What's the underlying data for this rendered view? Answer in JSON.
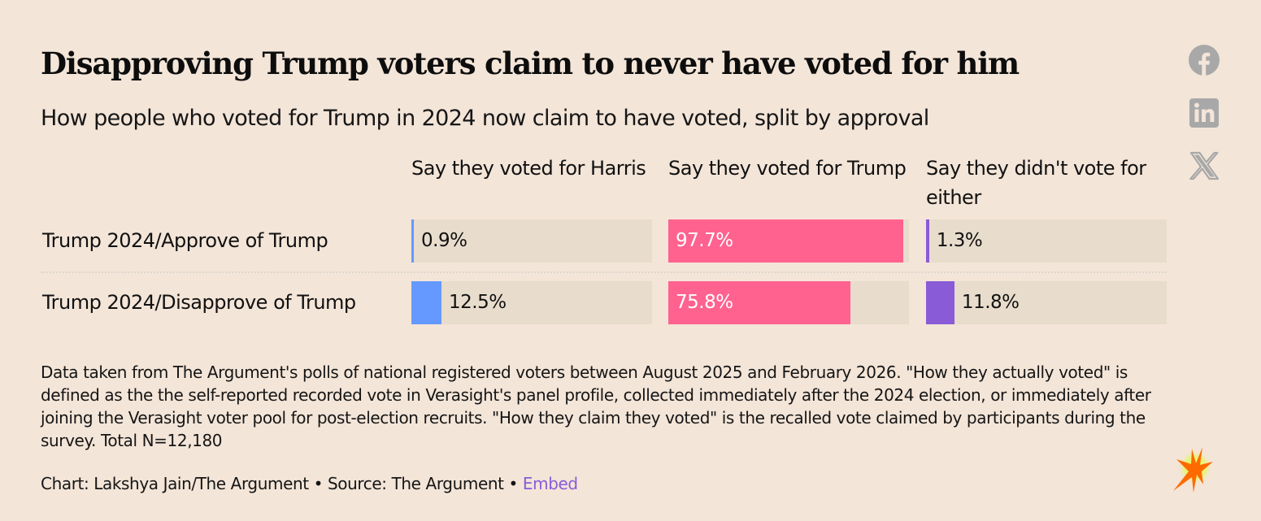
{
  "header": {
    "title": "Disapproving Trump voters claim to never have voted for him",
    "subtitle": "How people who voted for Trump in 2024 now claim to have voted, split by approval"
  },
  "share": [
    {
      "name": "facebook-icon",
      "label": "Share on Facebook"
    },
    {
      "name": "linkedin-icon",
      "label": "Share on LinkedIn"
    },
    {
      "name": "x-icon",
      "label": "Share on X"
    }
  ],
  "colors": {
    "background": "#f3e5d8",
    "track": "#e8dccc",
    "harris": "#6699ff",
    "trump": "#ff628f",
    "either": "#8a5bd6",
    "icon": "#a8a8a8",
    "link": "#8a5cd8"
  },
  "chart_data": {
    "type": "bar",
    "subtype": "small-multiple horizontal bars (table)",
    "title": "Disapproving Trump voters claim to never have voted for him",
    "subtitle": "How people who voted for Trump in 2024 now claim to have voted, split by approval",
    "columns": [
      {
        "key": "harris",
        "label": "Say they voted for Harris",
        "color": "#6699ff"
      },
      {
        "key": "trump",
        "label": "Say they voted for Trump",
        "color": "#ff628f"
      },
      {
        "key": "either",
        "label": "Say they didn't vote for either",
        "color": "#8a5bd6"
      }
    ],
    "categories": [
      "Trump 2024/Approve of Trump",
      "Trump 2024/Disapprove of Trump"
    ],
    "series": [
      {
        "name": "Say they voted for Harris",
        "values": [
          0.9,
          12.5
        ],
        "labels": [
          "0.9%",
          "12.5%"
        ]
      },
      {
        "name": "Say they voted for Trump",
        "values": [
          97.7,
          75.8
        ],
        "labels": [
          "97.7%",
          "75.8%"
        ]
      },
      {
        "name": "Say they didn't vote for either",
        "values": [
          1.3,
          11.8
        ],
        "labels": [
          "1.3%",
          "11.8%"
        ]
      }
    ],
    "xlim": [
      0,
      100
    ],
    "unit": "%",
    "legend": "none (column headers)",
    "grid": false
  },
  "footer": {
    "notes": "Data taken from The Argument's polls of national registered voters between August 2025 and February 2026. \"How they actually voted\" is defined as the the self-reported recorded vote in Verasight's panel profile, collected immediately after the 2024 election, or immediately after joining the Verasight voter pool for post-election recruits. \"How they claim they voted\" is the recalled vote claimed by participants during the survey. Total N=12,180",
    "credit_prefix": "Chart: Lakshya Jain/The Argument • Source: The Argument • ",
    "embed_label": "Embed"
  }
}
